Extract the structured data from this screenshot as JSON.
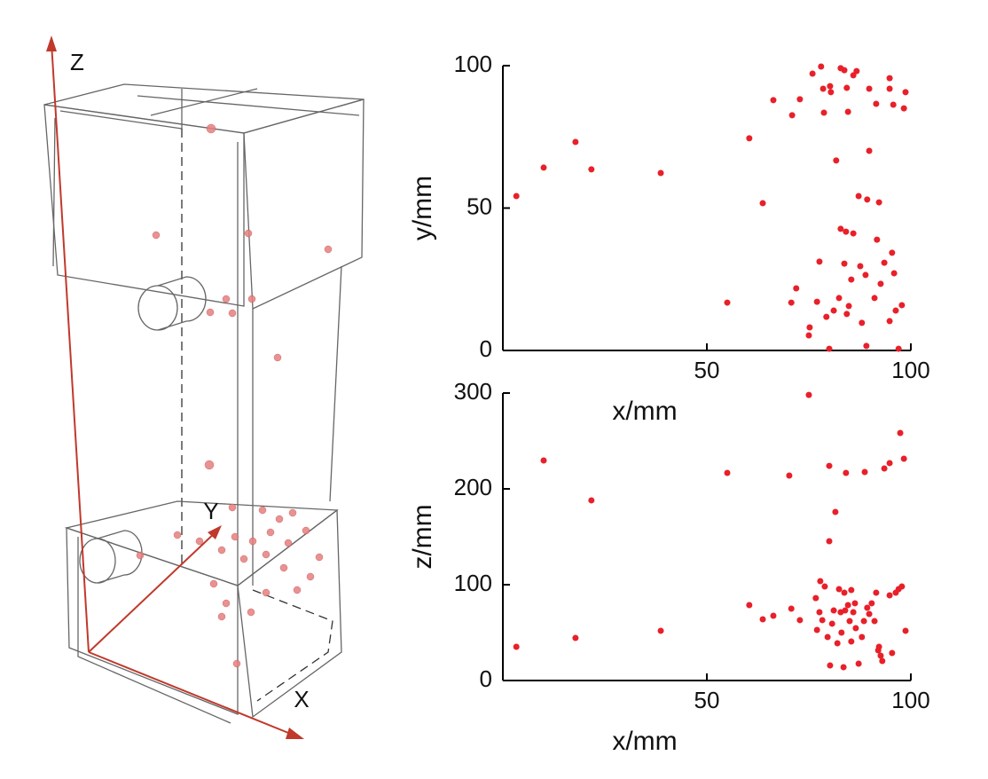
{
  "diagram": {
    "axes": {
      "x": "X",
      "y": "Y",
      "z": "Z"
    }
  },
  "chart_data": [
    {
      "type": "scatter",
      "xlabel": "x/mm",
      "ylabel": "y/mm",
      "color": "#e8202a",
      "xlim": [
        0,
        100
      ],
      "ylim": [
        0,
        100
      ],
      "xticks": [
        50,
        100
      ],
      "yticks": [
        0,
        50,
        100
      ],
      "x": [
        3.3,
        10,
        17.8,
        21.7,
        38.7,
        55,
        60.4,
        63.7,
        66.3,
        70.7,
        70.9,
        71.9,
        72.8,
        75,
        75.2,
        75.9,
        77,
        78,
        77.6,
        78.5,
        78.7,
        79.3,
        80,
        80.2,
        80.4,
        81.1,
        81.7,
        82.4,
        82.8,
        82.8,
        83.7,
        83.7,
        84.1,
        84.3,
        84.3,
        84.6,
        84.8,
        85.4,
        85.9,
        85.9,
        86.7,
        87.2,
        87.6,
        88,
        89.1,
        89.3,
        88.9,
        89.8,
        89.8,
        91.1,
        91.5,
        91.7,
        92.2,
        92.6,
        93.5,
        94.8,
        94.8,
        94.8,
        95.4,
        95.7,
        95.9,
        96.3,
        97,
        97.8,
        98.3,
        98.7
      ],
      "y": [
        54.2,
        64.2,
        73.2,
        63.6,
        62.3,
        16.8,
        74.5,
        51.7,
        87.9,
        16.8,
        82.6,
        21.8,
        88.2,
        5.3,
        8.1,
        97.2,
        17.1,
        99.7,
        31.2,
        91.9,
        83.5,
        11.8,
        0.6,
        92.8,
        90.7,
        14,
        66.7,
        18.4,
        99.1,
        42.7,
        98.4,
        30.5,
        41.7,
        92.2,
        12.8,
        83.8,
        15.6,
        24.9,
        41.1,
        96.6,
        98.1,
        54.2,
        29.6,
        9.7,
        1.6,
        53,
        26.5,
        91.9,
        70.1,
        18.4,
        86.6,
        38.9,
        52,
        23.4,
        30.8,
        95.6,
        10.3,
        91.9,
        34.3,
        86.3,
        27.1,
        14,
        0.6,
        15.9,
        85,
        90.7
      ]
    },
    {
      "type": "scatter",
      "xlabel": "x/mm",
      "ylabel": "z/mm",
      "color": "#e8202a",
      "xlim": [
        0,
        100
      ],
      "ylim": [
        0,
        300
      ],
      "xticks": [
        50,
        100
      ],
      "yticks": [
        0,
        100,
        200,
        300
      ],
      "x": [
        3.3,
        10,
        17.8,
        21.7,
        38.7,
        55,
        60.4,
        63.7,
        66.3,
        70.2,
        70.7,
        72.8,
        75,
        76.7,
        77,
        77.8,
        77.6,
        78.3,
        78.9,
        79.6,
        80,
        80,
        80.2,
        80.7,
        81.1,
        81.5,
        82,
        82.4,
        82.8,
        83,
        83.5,
        83.7,
        83.9,
        84.1,
        84.6,
        85,
        85.4,
        85.4,
        85.9,
        86.3,
        86.5,
        87.2,
        88,
        88.5,
        88.7,
        89.3,
        89.8,
        90.4,
        91.1,
        91.5,
        92,
        92.2,
        92.6,
        93,
        93.5,
        94.8,
        94.8,
        95.4,
        96.3,
        97,
        97.4,
        97.8,
        98.3,
        98.7
      ],
      "y": [
        35.2,
        229.6,
        44.4,
        188,
        51.9,
        216.7,
        78.7,
        63.9,
        67.6,
        213.9,
        75,
        63,
        298,
        86,
        52.8,
        103.7,
        71.3,
        63,
        98.1,
        45.4,
        224,
        145.4,
        15.7,
        59.3,
        73.1,
        175.9,
        38.9,
        95.4,
        71.3,
        50,
        13.9,
        91.7,
        73.1,
        216.7,
        78.7,
        62,
        94.4,
        40.7,
        71.3,
        80.6,
        54.6,
        17.6,
        45.4,
        62,
        217.6,
        75.9,
        69.4,
        80.6,
        62,
        91.7,
        31.5,
        35.2,
        25.9,
        20.4,
        221.3,
        88.9,
        226.9,
        28.7,
        91.7,
        95.4,
        258.3,
        98.1,
        231.5,
        51.9
      ]
    }
  ]
}
